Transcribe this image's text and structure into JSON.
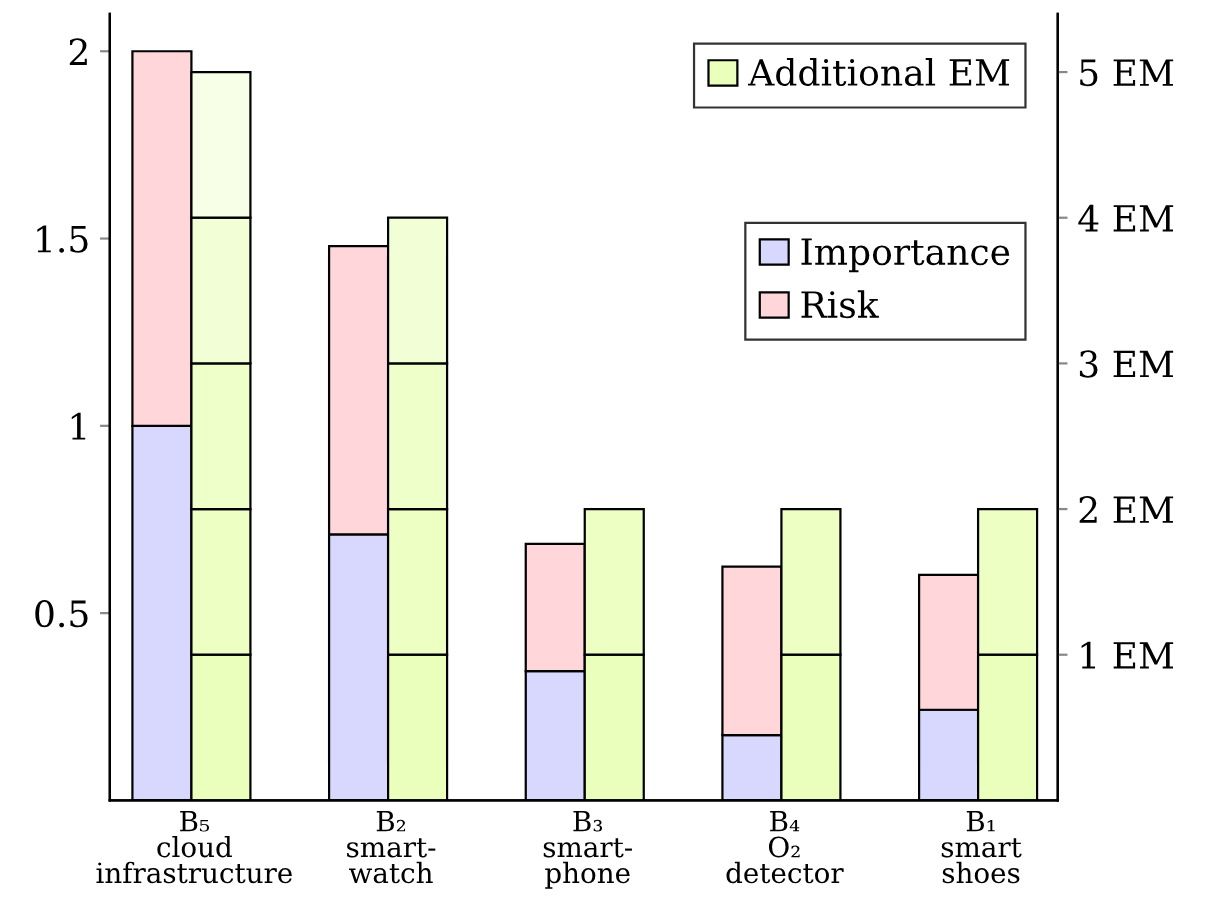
{
  "chart_data": {
    "type": "bar",
    "stacked": true,
    "categories": [
      "B₅\ncloud\ninfrastructure",
      "B₂\nsmart-\nwatch",
      "B₃\nsmart-\nphone",
      "B₄\nO₂\ndetector",
      "B₁\nsmart\nshoes"
    ],
    "series": [
      {
        "name": "Importance",
        "color": "#d8d8ff",
        "values": [
          1.0,
          0.71,
          0.345,
          0.174,
          0.242
        ]
      },
      {
        "name": "Risk",
        "color": "#ffd6da",
        "values": [
          1.0,
          0.77,
          0.34,
          0.45,
          0.36
        ]
      },
      {
        "name": "Additional EM",
        "axis": "y2",
        "color": "#eaffbb",
        "values": [
          1,
          1,
          1,
          1,
          1
        ]
      },
      {
        "axis": "y2",
        "color": "#edffc3",
        "values": [
          1,
          1,
          1,
          1,
          1
        ]
      },
      {
        "axis": "y2",
        "color": "#efffca",
        "values": [
          1,
          1,
          null,
          null,
          null
        ]
      },
      {
        "axis": "y2",
        "color": "#f2ffd6",
        "values": [
          1,
          1,
          null,
          null,
          null
        ]
      },
      {
        "axis": "y2",
        "color": "#f7ffe6",
        "values": [
          1,
          null,
          null,
          null,
          null
        ]
      }
    ],
    "ylim": [
      0,
      2.1
    ],
    "yticks": [
      0.5,
      1,
      1.5,
      2
    ],
    "y2lim": [
      0,
      5.4
    ],
    "y2ticks": [
      {
        "value": 1,
        "label": "1 EM"
      },
      {
        "value": 2,
        "label": "2 EM"
      },
      {
        "value": 3,
        "label": "3 EM"
      },
      {
        "value": 4,
        "label": "4 EM"
      },
      {
        "value": 5,
        "label": "5 EM"
      }
    ],
    "legend": "right",
    "grid": false
  }
}
